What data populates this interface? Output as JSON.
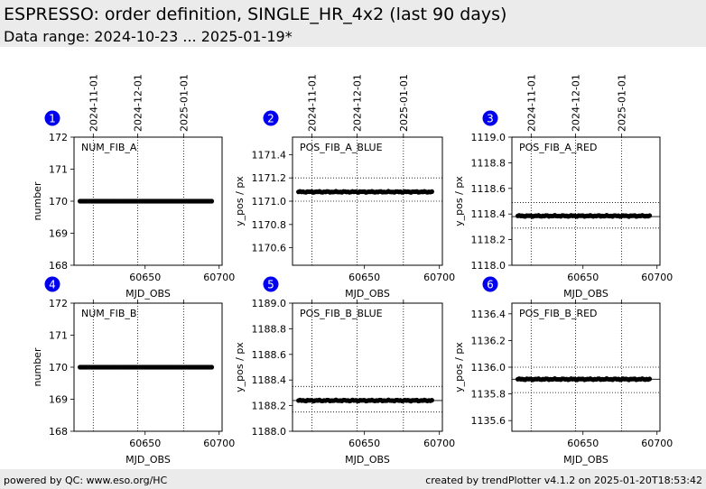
{
  "header": {
    "title": "ESPRESSO: order definition, SINGLE_HR_4x2 (last 90 days)",
    "subtitle": "Data range: 2024-10-23 ... 2025-01-19*"
  },
  "footer": {
    "left": "powered by QC: www.eso.org/HC",
    "right": "created by trendPlotter v4.1.2 on 2025-01-20T18:53:42"
  },
  "colors": {
    "marker_badge": "#0000ee",
    "points": "#000000",
    "header_bg": "#ebebeb"
  },
  "chart_data": [
    {
      "type": "scatter",
      "index": "1",
      "label": "NUM_FIB_A",
      "xlabel": "MJD_OBS",
      "ylabel": "number",
      "xlim": [
        60602,
        60702
      ],
      "ylim": [
        168,
        172
      ],
      "yticks": [
        "168",
        "169",
        "170",
        "171",
        "172"
      ],
      "xticks": [
        "60650",
        "60700"
      ],
      "date_ticks": [
        {
          "label": "2024-11-01",
          "mjd": 60615
        },
        {
          "label": "2024-12-01",
          "mjd": 60645
        },
        {
          "label": "2025-01-01",
          "mjd": 60676
        }
      ],
      "ref_lines": [],
      "series_range": [
        60606,
        60695
      ],
      "y_mean": 170.0,
      "y_noise": 0
    },
    {
      "type": "scatter",
      "index": "2",
      "label": "POS_FIB_A_BLUE",
      "xlabel": "MJD_OBS",
      "ylabel": "y_pos / px",
      "xlim": [
        60602,
        60702
      ],
      "ylim": [
        1170.45,
        1171.55
      ],
      "yticks": [
        "1170.6",
        "1170.8",
        "1171.0",
        "1171.2",
        "1171.4"
      ],
      "xticks": [
        "60650",
        "60700"
      ],
      "date_ticks": [
        {
          "label": "2024-11-01",
          "mjd": 60615
        },
        {
          "label": "2024-12-01",
          "mjd": 60645
        },
        {
          "label": "2025-01-01",
          "mjd": 60676
        }
      ],
      "ref_lines": [
        1171.2,
        1171.0
      ],
      "series_range": [
        60606,
        60695
      ],
      "y_mean": 1171.08,
      "y_noise": 0.005
    },
    {
      "type": "scatter",
      "index": "3",
      "label": "POS_FIB_A_RED",
      "xlabel": "MJD_OBS",
      "ylabel": "y_pos / px",
      "xlim": [
        60602,
        60702
      ],
      "ylim": [
        1118.0,
        1119.0
      ],
      "yticks": [
        "1118.0",
        "1118.2",
        "1118.4",
        "1118.6",
        "1118.8",
        "1119.0"
      ],
      "xticks": [
        "60650",
        "60700"
      ],
      "date_ticks": [
        {
          "label": "2024-11-01",
          "mjd": 60615
        },
        {
          "label": "2024-12-01",
          "mjd": 60645
        },
        {
          "label": "2025-01-01",
          "mjd": 60676
        }
      ],
      "ref_lines": [
        1118.49,
        1118.38,
        1118.29
      ],
      "series_range": [
        60606,
        60695
      ],
      "y_mean": 1118.385,
      "y_noise": 0.005
    },
    {
      "type": "scatter",
      "index": "4",
      "label": "NUM_FIB_B",
      "xlabel": "MJD_OBS",
      "ylabel": "number",
      "xlim": [
        60602,
        60702
      ],
      "ylim": [
        168,
        172
      ],
      "yticks": [
        "168",
        "169",
        "170",
        "171",
        "172"
      ],
      "xticks": [
        "60650",
        "60700"
      ],
      "date_ticks": [
        {
          "label": "",
          "mjd": 60615
        },
        {
          "label": "",
          "mjd": 60645
        },
        {
          "label": "",
          "mjd": 60676
        }
      ],
      "ref_lines": [],
      "series_range": [
        60606,
        60695
      ],
      "y_mean": 170.0,
      "y_noise": 0
    },
    {
      "type": "scatter",
      "index": "5",
      "label": "POS_FIB_B_BLUE",
      "xlabel": "MJD_OBS",
      "ylabel": "y_pos / px",
      "xlim": [
        60602,
        60702
      ],
      "ylim": [
        1188.0,
        1189.0
      ],
      "yticks": [
        "1188.0",
        "1188.2",
        "1188.4",
        "1188.6",
        "1188.8",
        "1189.0"
      ],
      "xticks": [
        "60650",
        "60700"
      ],
      "date_ticks": [
        {
          "label": "",
          "mjd": 60615
        },
        {
          "label": "",
          "mjd": 60645
        },
        {
          "label": "",
          "mjd": 60676
        }
      ],
      "ref_lines": [
        1188.35,
        1188.24,
        1188.15
      ],
      "series_range": [
        60606,
        60695
      ],
      "y_mean": 1188.24,
      "y_noise": 0.005
    },
    {
      "type": "scatter",
      "index": "6",
      "label": "POS_FIB_B_RED",
      "xlabel": "MJD_OBS",
      "ylabel": "y_pos / px",
      "xlim": [
        60602,
        60702
      ],
      "ylim": [
        1135.52,
        1136.48
      ],
      "yticks": [
        "1135.6",
        "1135.8",
        "1136.0",
        "1136.2",
        "1136.4"
      ],
      "xticks": [
        "60650",
        "60700"
      ],
      "date_ticks": [
        {
          "label": "",
          "mjd": 60615
        },
        {
          "label": "",
          "mjd": 60645
        },
        {
          "label": "",
          "mjd": 60676
        }
      ],
      "ref_lines": [
        1136.0,
        1135.91,
        1135.81
      ],
      "series_range": [
        60606,
        60695
      ],
      "y_mean": 1135.91,
      "y_noise": 0.005
    }
  ]
}
